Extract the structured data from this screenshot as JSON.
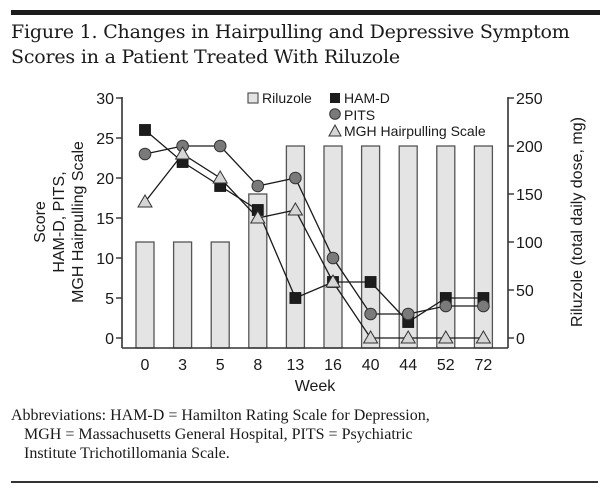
{
  "figure": {
    "title_line1": "Figure 1. Changes in Hairpulling and Depressive Symptom",
    "title_line2": "Scores in a Patient Treated With Riluzole"
  },
  "footnote": {
    "line1": "Abbreviations: HAM-D = Hamilton Rating Scale for Depression,",
    "line2": "MGH = Massachusetts General Hospital, PITS = Psychiatric",
    "line3": "Institute Trichotillomania Scale."
  },
  "chart_data": {
    "type": "bar+line",
    "title": "Changes in Hairpulling and Depressive Symptom Scores in a Patient Treated With Riluzole",
    "xlabel": "Week",
    "ylabel_left": [
      "Score",
      "HAM-D, PITS,",
      "MGH Hairpulling Scale"
    ],
    "ylabel_right": "Riluzole (total daily dose, mg)",
    "categories": [
      "0",
      "3",
      "5",
      "8",
      "13",
      "16",
      "40",
      "44",
      "52",
      "72"
    ],
    "ylim_left": [
      0,
      30
    ],
    "yticks_left": [
      0,
      5,
      10,
      15,
      20,
      25,
      30
    ],
    "ylim_right": [
      0,
      250
    ],
    "yticks_right": [
      0,
      50,
      100,
      150,
      200,
      250
    ],
    "grid": false,
    "legend_position": "top-center",
    "colors": {
      "riluzole_fill": "#e4e4e4",
      "riluzole_stroke": "#555555",
      "hamd": "#1c1c1c",
      "pits": "#7a7a7a",
      "mgh": "#d6d6d6",
      "line": "#1a1a1a"
    },
    "series": [
      {
        "name": "Riluzole",
        "kind": "bar",
        "axis": "right",
        "marker": "square-outline",
        "values": [
          100,
          100,
          100,
          150,
          200,
          200,
          200,
          200,
          200,
          200
        ]
      },
      {
        "name": "HAM-D",
        "kind": "line",
        "axis": "left",
        "marker": "square",
        "values": [
          26,
          22,
          19,
          16,
          5,
          7,
          7,
          2,
          5,
          5
        ]
      },
      {
        "name": "PITS",
        "kind": "line",
        "axis": "left",
        "marker": "circle",
        "values": [
          23,
          24,
          24,
          19,
          20,
          10,
          3,
          3,
          4,
          4
        ]
      },
      {
        "name": "MGH Hairpulling Scale",
        "kind": "line",
        "axis": "left",
        "marker": "triangle",
        "values": [
          17,
          23,
          20,
          15,
          16,
          7,
          0,
          0,
          0,
          0
        ]
      }
    ]
  }
}
